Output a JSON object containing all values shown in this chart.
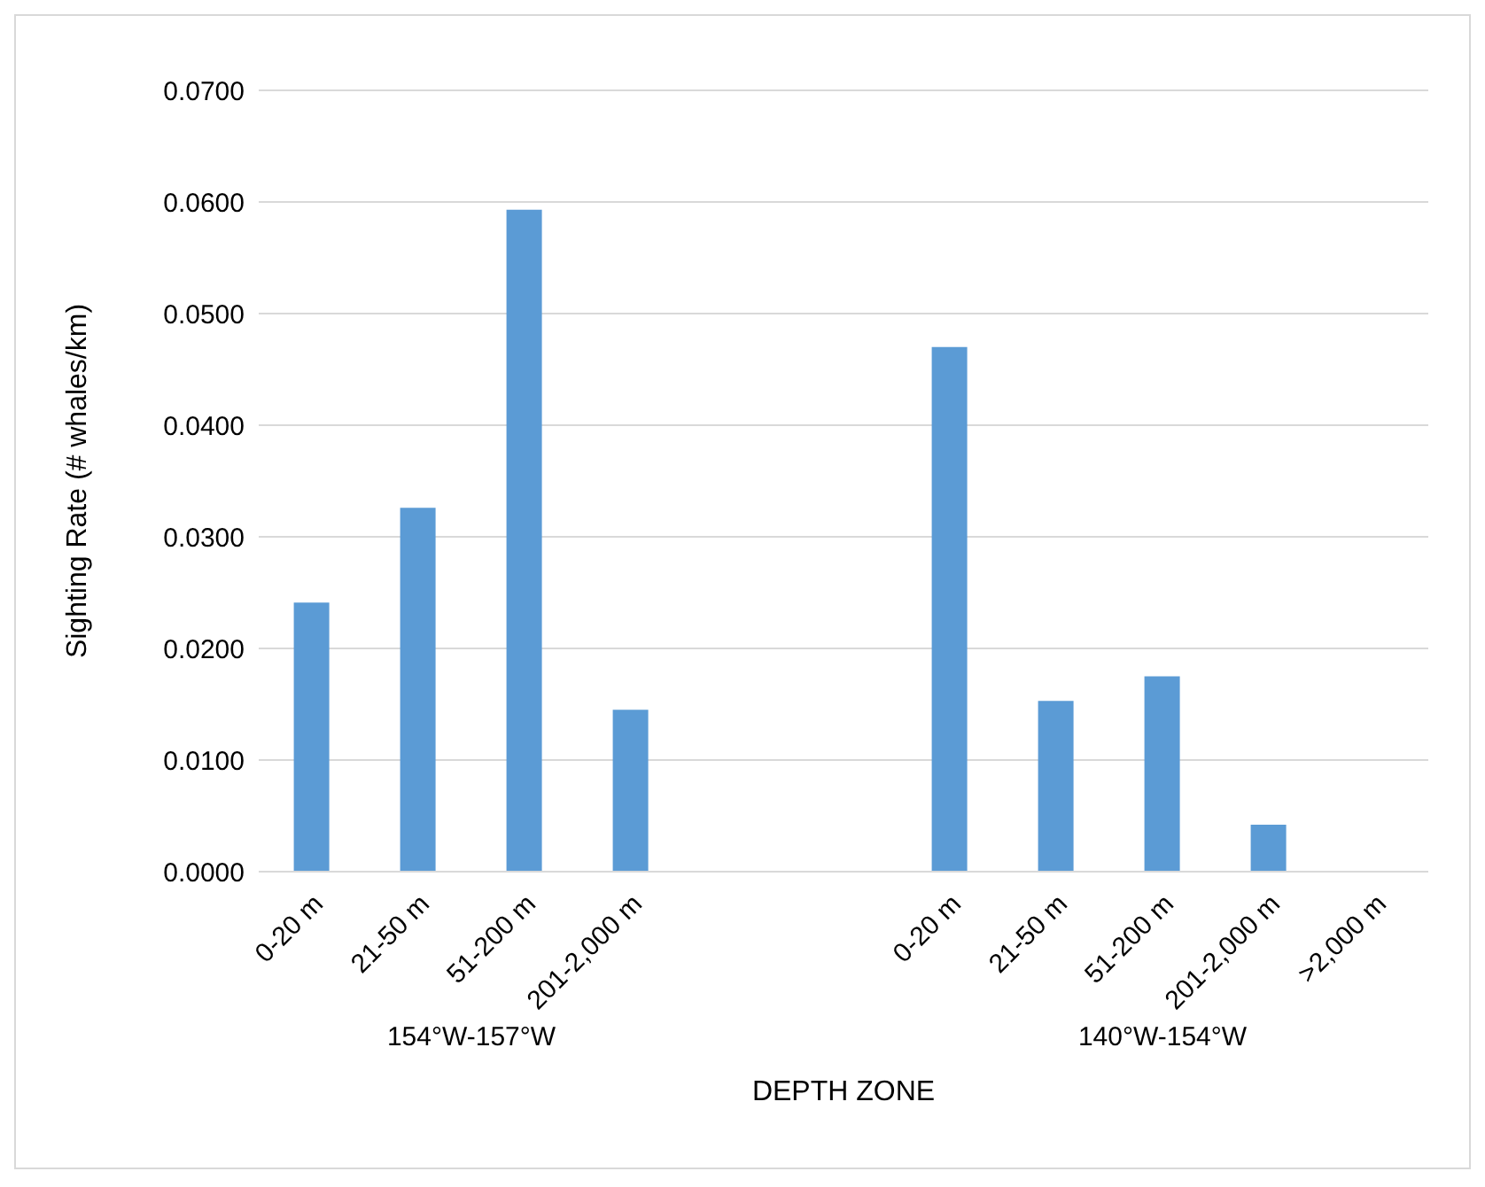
{
  "chart_data": {
    "type": "bar",
    "xlabel": "DEPTH ZONE",
    "ylabel": "Sighting Rate (# whales/km)",
    "categories": [
      "0-20 m",
      "21-50 m",
      "51-200 m",
      "201-2,000 m",
      null,
      null,
      "0-20 m",
      "21-50 m",
      "51-200 m",
      "201-2,000 m",
      ">2,000 m"
    ],
    "values": [
      0.0241,
      0.0326,
      0.0593,
      0.0145,
      null,
      null,
      0.047,
      0.0153,
      0.0175,
      0.0042,
      0
    ],
    "color": "#5b9bd5",
    "ylim": [
      0,
      0.07
    ],
    "yticks": [
      {
        "value": 0,
        "label": "0.0000"
      },
      {
        "value": 0.01,
        "label": "0.0100"
      },
      {
        "value": 0.02,
        "label": "0.0200"
      },
      {
        "value": 0.03,
        "label": "0.0300"
      },
      {
        "value": 0.04,
        "label": "0.0400"
      },
      {
        "value": 0.05,
        "label": "0.0500"
      },
      {
        "value": 0.06,
        "label": "0.0600"
      },
      {
        "value": 0.07,
        "label": "0.0700"
      }
    ],
    "grid": "y",
    "annotations": [
      "154°W-157°W",
      "140°W-154°W"
    ]
  }
}
